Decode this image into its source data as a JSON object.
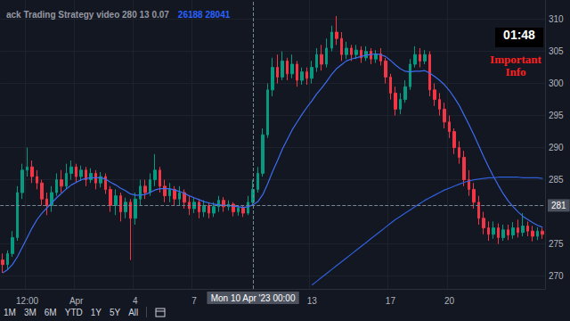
{
  "chart_data": {
    "type": "candlestick",
    "title": "ack Trading Strategy video 280 13 0.07",
    "subtitle": "26188 28041",
    "categories": [
      null,
      null,
      null,
      null,
      null,
      "12:00",
      null,
      null,
      null,
      null,
      null,
      null,
      null,
      null,
      null,
      "Apr",
      null,
      null,
      null,
      null,
      null,
      null,
      null,
      null,
      null,
      null,
      null,
      "4",
      null,
      null,
      null,
      null,
      null,
      null,
      null,
      null,
      null,
      null,
      null,
      "7",
      null,
      null,
      null,
      null,
      null,
      null,
      null,
      null,
      null,
      null,
      null,
      null,
      null,
      null,
      null,
      null,
      null,
      null,
      null,
      null,
      null,
      null,
      null,
      "13",
      null,
      null,
      null,
      null,
      null,
      null,
      null,
      null,
      null,
      null,
      null,
      null,
      null,
      null,
      null,
      "17",
      null,
      null,
      null,
      null,
      null,
      null,
      null,
      null,
      null,
      null,
      null,
      "20",
      null,
      null,
      null,
      null,
      null,
      null,
      null,
      null,
      null,
      null,
      null,
      null,
      null,
      null,
      null,
      null,
      null,
      null,
      null
    ],
    "series": [
      {
        "type": "candlestick",
        "values": [
          [
            272.5,
            271.8,
            270.5,
            273.5
          ],
          [
            271.8,
            273.5,
            271,
            274
          ],
          [
            273.5,
            276,
            273,
            277
          ],
          [
            276,
            283,
            275.5,
            284
          ],
          [
            283,
            286.5,
            282,
            287.5
          ],
          [
            286.5,
            287,
            285.5,
            290
          ],
          [
            287,
            285.5,
            284.5,
            288
          ],
          [
            285.5,
            284.5,
            283.5,
            286.5
          ],
          [
            284.5,
            282,
            281,
            285
          ],
          [
            282,
            281,
            279.5,
            283
          ],
          [
            281,
            283,
            280,
            284
          ],
          [
            283,
            285,
            282.5,
            286
          ],
          [
            285,
            284,
            283,
            286.5
          ],
          [
            284,
            286,
            283.5,
            287.5
          ],
          [
            286,
            287,
            285,
            288
          ],
          [
            287,
            285.5,
            284.5,
            287.5
          ],
          [
            285.5,
            286.5,
            284.8,
            287.2
          ],
          [
            286.5,
            285,
            284,
            287
          ],
          [
            285,
            286,
            284.5,
            286.8
          ],
          [
            286,
            284.5,
            283.5,
            286.5
          ],
          [
            284.5,
            285.5,
            283.8,
            286.2
          ],
          [
            285.5,
            283.5,
            282.8,
            286
          ],
          [
            283.5,
            281,
            280,
            284
          ],
          [
            281,
            282.5,
            279.5,
            283.5
          ],
          [
            282.5,
            280,
            278.5,
            283
          ],
          [
            280,
            281.5,
            279,
            282.2
          ],
          [
            281.5,
            279,
            272.5,
            282
          ],
          [
            279,
            282,
            278,
            283
          ],
          [
            282,
            284,
            281,
            285
          ],
          [
            284,
            283,
            282,
            285
          ],
          [
            283,
            285,
            282.5,
            286
          ],
          [
            285,
            286.5,
            284,
            289
          ],
          [
            286.5,
            284,
            283,
            287
          ],
          [
            284,
            282.5,
            281.5,
            285
          ],
          [
            282.5,
            283.5,
            281.5,
            284.5
          ],
          [
            283.5,
            282,
            281,
            284
          ],
          [
            282,
            283,
            281,
            284
          ],
          [
            283,
            281.5,
            280.5,
            283.5
          ],
          [
            281.5,
            280.5,
            279.5,
            282.5
          ],
          [
            280.5,
            281.5,
            279.8,
            282.2
          ],
          [
            281.5,
            280,
            279,
            282
          ],
          [
            280,
            281,
            279.2,
            281.8
          ],
          [
            281,
            279.8,
            279,
            281.5
          ],
          [
            279.8,
            280.8,
            279.2,
            281.5
          ],
          [
            280.8,
            281.8,
            280,
            282.5
          ],
          [
            281.8,
            280.8,
            280,
            282.3
          ],
          [
            280.8,
            281.2,
            280.2,
            281.8
          ],
          [
            281.2,
            280,
            279.3,
            281.5
          ],
          [
            280,
            280.6,
            279.4,
            281
          ],
          [
            280.6,
            279.8,
            279.2,
            281
          ],
          [
            279.8,
            281.5,
            279.5,
            282.5
          ],
          [
            281.5,
            283.5,
            281,
            285
          ],
          [
            283.5,
            286,
            283,
            287
          ],
          [
            286,
            292,
            285.5,
            293
          ],
          [
            292,
            299,
            291.5,
            300
          ],
          [
            299,
            302.5,
            298,
            304
          ],
          [
            302.5,
            301,
            300,
            304.5
          ],
          [
            301,
            303.5,
            300.5,
            305
          ],
          [
            303.5,
            301.5,
            300.5,
            304
          ],
          [
            301.5,
            303,
            300.8,
            304.5
          ],
          [
            303,
            300.5,
            299.5,
            303.5
          ],
          [
            300.5,
            301.8,
            299.8,
            302.5
          ],
          [
            301.8,
            300.8,
            299.8,
            302.5
          ],
          [
            300.8,
            302.5,
            300,
            303.5
          ],
          [
            302.5,
            304.5,
            301.8,
            305.5
          ],
          [
            304.5,
            303,
            302,
            306
          ],
          [
            303,
            305.5,
            302.5,
            307
          ],
          [
            305.5,
            308,
            305,
            309
          ],
          [
            308,
            307,
            306,
            310.5
          ],
          [
            307,
            304.5,
            303.5,
            308
          ],
          [
            304.5,
            305.5,
            303.8,
            306.5
          ],
          [
            305.5,
            304.5,
            303.5,
            306
          ],
          [
            304.5,
            305.2,
            303.8,
            306
          ],
          [
            305.2,
            304,
            303.2,
            305.8
          ],
          [
            304,
            305,
            303.5,
            305.8
          ],
          [
            305,
            303.8,
            303,
            305.5
          ],
          [
            303.8,
            304.6,
            303.2,
            305.2
          ],
          [
            304.6,
            303.5,
            302.8,
            305.5
          ],
          [
            303.5,
            301,
            300,
            304
          ],
          [
            301,
            298.5,
            297.5,
            301.5
          ],
          [
            298.5,
            296,
            295,
            299.5
          ],
          [
            296,
            297.5,
            295.2,
            298.5
          ],
          [
            297.5,
            299.5,
            297,
            300.5
          ],
          [
            299.5,
            303,
            299,
            303.8
          ],
          [
            303,
            304.5,
            302.5,
            305.8
          ],
          [
            304.5,
            303.5,
            302.5,
            305.5
          ],
          [
            303.5,
            304.5,
            303,
            305.2
          ],
          [
            304.5,
            299,
            298,
            305
          ],
          [
            299,
            297.5,
            296.5,
            300
          ],
          [
            297.5,
            296,
            295,
            298.5
          ],
          [
            296,
            294,
            293,
            297
          ],
          [
            294,
            292.5,
            291.5,
            295
          ],
          [
            292.5,
            290,
            289,
            293
          ],
          [
            290,
            288.5,
            287.5,
            291
          ],
          [
            288.5,
            285,
            284,
            289.5
          ],
          [
            285,
            283.5,
            282.5,
            286.5
          ],
          [
            283.5,
            281.5,
            280.5,
            284.5
          ],
          [
            281.5,
            279,
            278,
            282.5
          ],
          [
            279,
            277.5,
            276.5,
            280
          ],
          [
            277.5,
            276.5,
            275.5,
            278.5
          ],
          [
            276.5,
            277.5,
            275.8,
            278.5
          ],
          [
            277.5,
            276,
            275,
            278.2
          ],
          [
            276,
            277.2,
            275.5,
            278
          ],
          [
            277.2,
            276.4,
            275.6,
            278
          ],
          [
            276.4,
            277.5,
            275.8,
            278.4
          ],
          [
            277.5,
            276.8,
            276,
            278.8
          ],
          [
            276.8,
            277.8,
            276.2,
            279.8
          ],
          [
            277.8,
            277,
            276.2,
            278.5
          ],
          [
            277,
            276.2,
            275.4,
            277.8
          ],
          [
            276.2,
            277,
            275.6,
            277.6
          ],
          [
            277,
            276.5,
            275.8,
            277.5
          ]
        ]
      },
      {
        "type": "line",
        "color": "#3d6cf0",
        "values": [
          270.5,
          271,
          271.8,
          273,
          274.5,
          276,
          277.5,
          278.8,
          279.8,
          280.6,
          281.4,
          282.2,
          282.9,
          283.6,
          284.2,
          284.6,
          285,
          285.2,
          285.3,
          285.3,
          285.3,
          285.1,
          284.6,
          284.2,
          283.7,
          283.3,
          282.8,
          282.6,
          282.6,
          282.7,
          283,
          283.4,
          283.6,
          283.6,
          283.6,
          283.4,
          283.2,
          282.9,
          282.5,
          282.2,
          281.9,
          281.6,
          281.4,
          281.2,
          281.1,
          281,
          281,
          280.9,
          280.8,
          280.7,
          280.8,
          281.1,
          281.6,
          282.7,
          284.4,
          286.3,
          288,
          289.8,
          291.3,
          292.8,
          294,
          295.2,
          296.3,
          297.3,
          298.4,
          299.3,
          300.3,
          301.4,
          302.3,
          302.9,
          303.5,
          303.8,
          304,
          304.2,
          304.4,
          304.5,
          304.6,
          304.5,
          304.2,
          303.6,
          302.9,
          302.3,
          301.9,
          301.8,
          301.9,
          301.9,
          302,
          301.6,
          301.1,
          300.5,
          299.8,
          298.9,
          297.8,
          296.6,
          295.1,
          293.6,
          292,
          290.3,
          288.6,
          287,
          285.5,
          284.1,
          282.8,
          281.7,
          280.8,
          280,
          279.3,
          278.8,
          278.3,
          277.9,
          277.6
        ]
      },
      {
        "type": "line",
        "color": "#2f5fd8",
        "values": [
          null,
          null,
          null,
          null,
          null,
          null,
          null,
          null,
          null,
          null,
          null,
          null,
          null,
          null,
          null,
          null,
          null,
          null,
          null,
          null,
          null,
          null,
          null,
          null,
          null,
          null,
          null,
          null,
          null,
          null,
          null,
          null,
          null,
          null,
          null,
          null,
          null,
          null,
          null,
          null,
          null,
          null,
          null,
          null,
          null,
          null,
          null,
          null,
          null,
          null,
          null,
          null,
          null,
          null,
          null,
          null,
          null,
          null,
          null,
          null,
          null,
          null,
          null,
          268.6,
          269.2,
          269.8,
          270.4,
          271,
          271.6,
          272.2,
          272.8,
          273.4,
          274,
          274.6,
          275.2,
          275.8,
          276.4,
          277,
          277.6,
          278.2,
          278.8,
          279.3,
          279.8,
          280.3,
          280.8,
          281.3,
          281.8,
          282.2,
          282.6,
          283,
          283.4,
          283.7,
          284,
          284.3,
          284.6,
          284.8,
          285,
          285.1,
          285.2,
          285.3,
          285.3,
          285.4,
          285.4,
          285.4,
          285.4,
          285.4,
          285.3,
          285.3,
          285.3,
          285.3,
          285.2
        ]
      }
    ],
    "ylim": [
      268,
      313
    ],
    "yticks": [
      270,
      275,
      285,
      290,
      295,
      300,
      305,
      310
    ],
    "grid": true,
    "annotations": [
      {
        "text": "Mon 10 Apr '23 00:00",
        "x": 51
      },
      {
        "text": "281",
        "y": 281
      }
    ]
  },
  "overlay": {
    "timer": "01:48",
    "note": "Important Info",
    "range_buttons": [
      "1M",
      "3M",
      "6M",
      "YTD",
      "1Y",
      "5Y",
      "All"
    ]
  }
}
